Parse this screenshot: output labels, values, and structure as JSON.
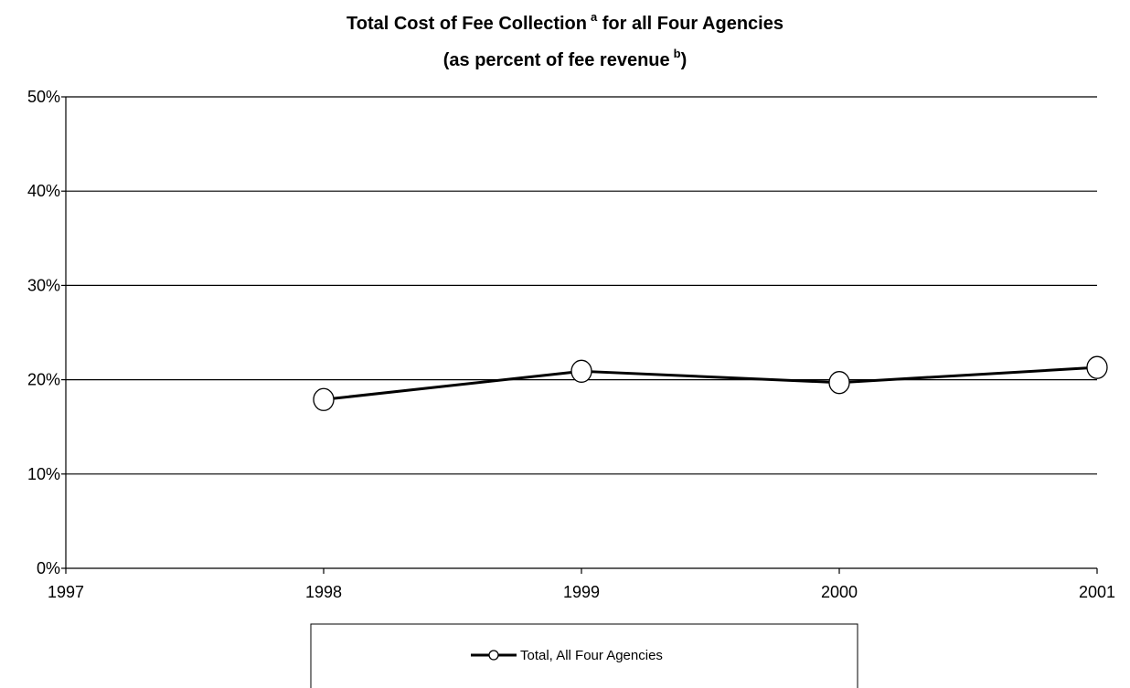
{
  "chart_data": {
    "type": "line",
    "title": "Total Cost of Fee Collection",
    "title_superscript": "a",
    "title_suffix": " for all Four Agencies",
    "subtitle": "(as percent of fee revenue",
    "subtitle_superscript": "b",
    "subtitle_suffix": ")",
    "xlabel": "",
    "ylabel": "",
    "x_ticks": [
      "1997",
      "1998",
      "1999",
      "2000",
      "2001"
    ],
    "x_range": [
      1997,
      2001
    ],
    "y_ticks": [
      "0%",
      "10%",
      "20%",
      "30%",
      "40%",
      "50%"
    ],
    "y_tick_values": [
      0,
      10,
      20,
      30,
      40,
      50
    ],
    "ylim": [
      0,
      50
    ],
    "grid": true,
    "legend_position": "bottom",
    "series": [
      {
        "name": "Total, All Four Agencies",
        "x": [
          1998,
          1999,
          2000,
          2001
        ],
        "values": [
          17.9,
          20.9,
          19.7,
          21.3
        ],
        "color": "#000000",
        "marker": "circle"
      }
    ]
  }
}
